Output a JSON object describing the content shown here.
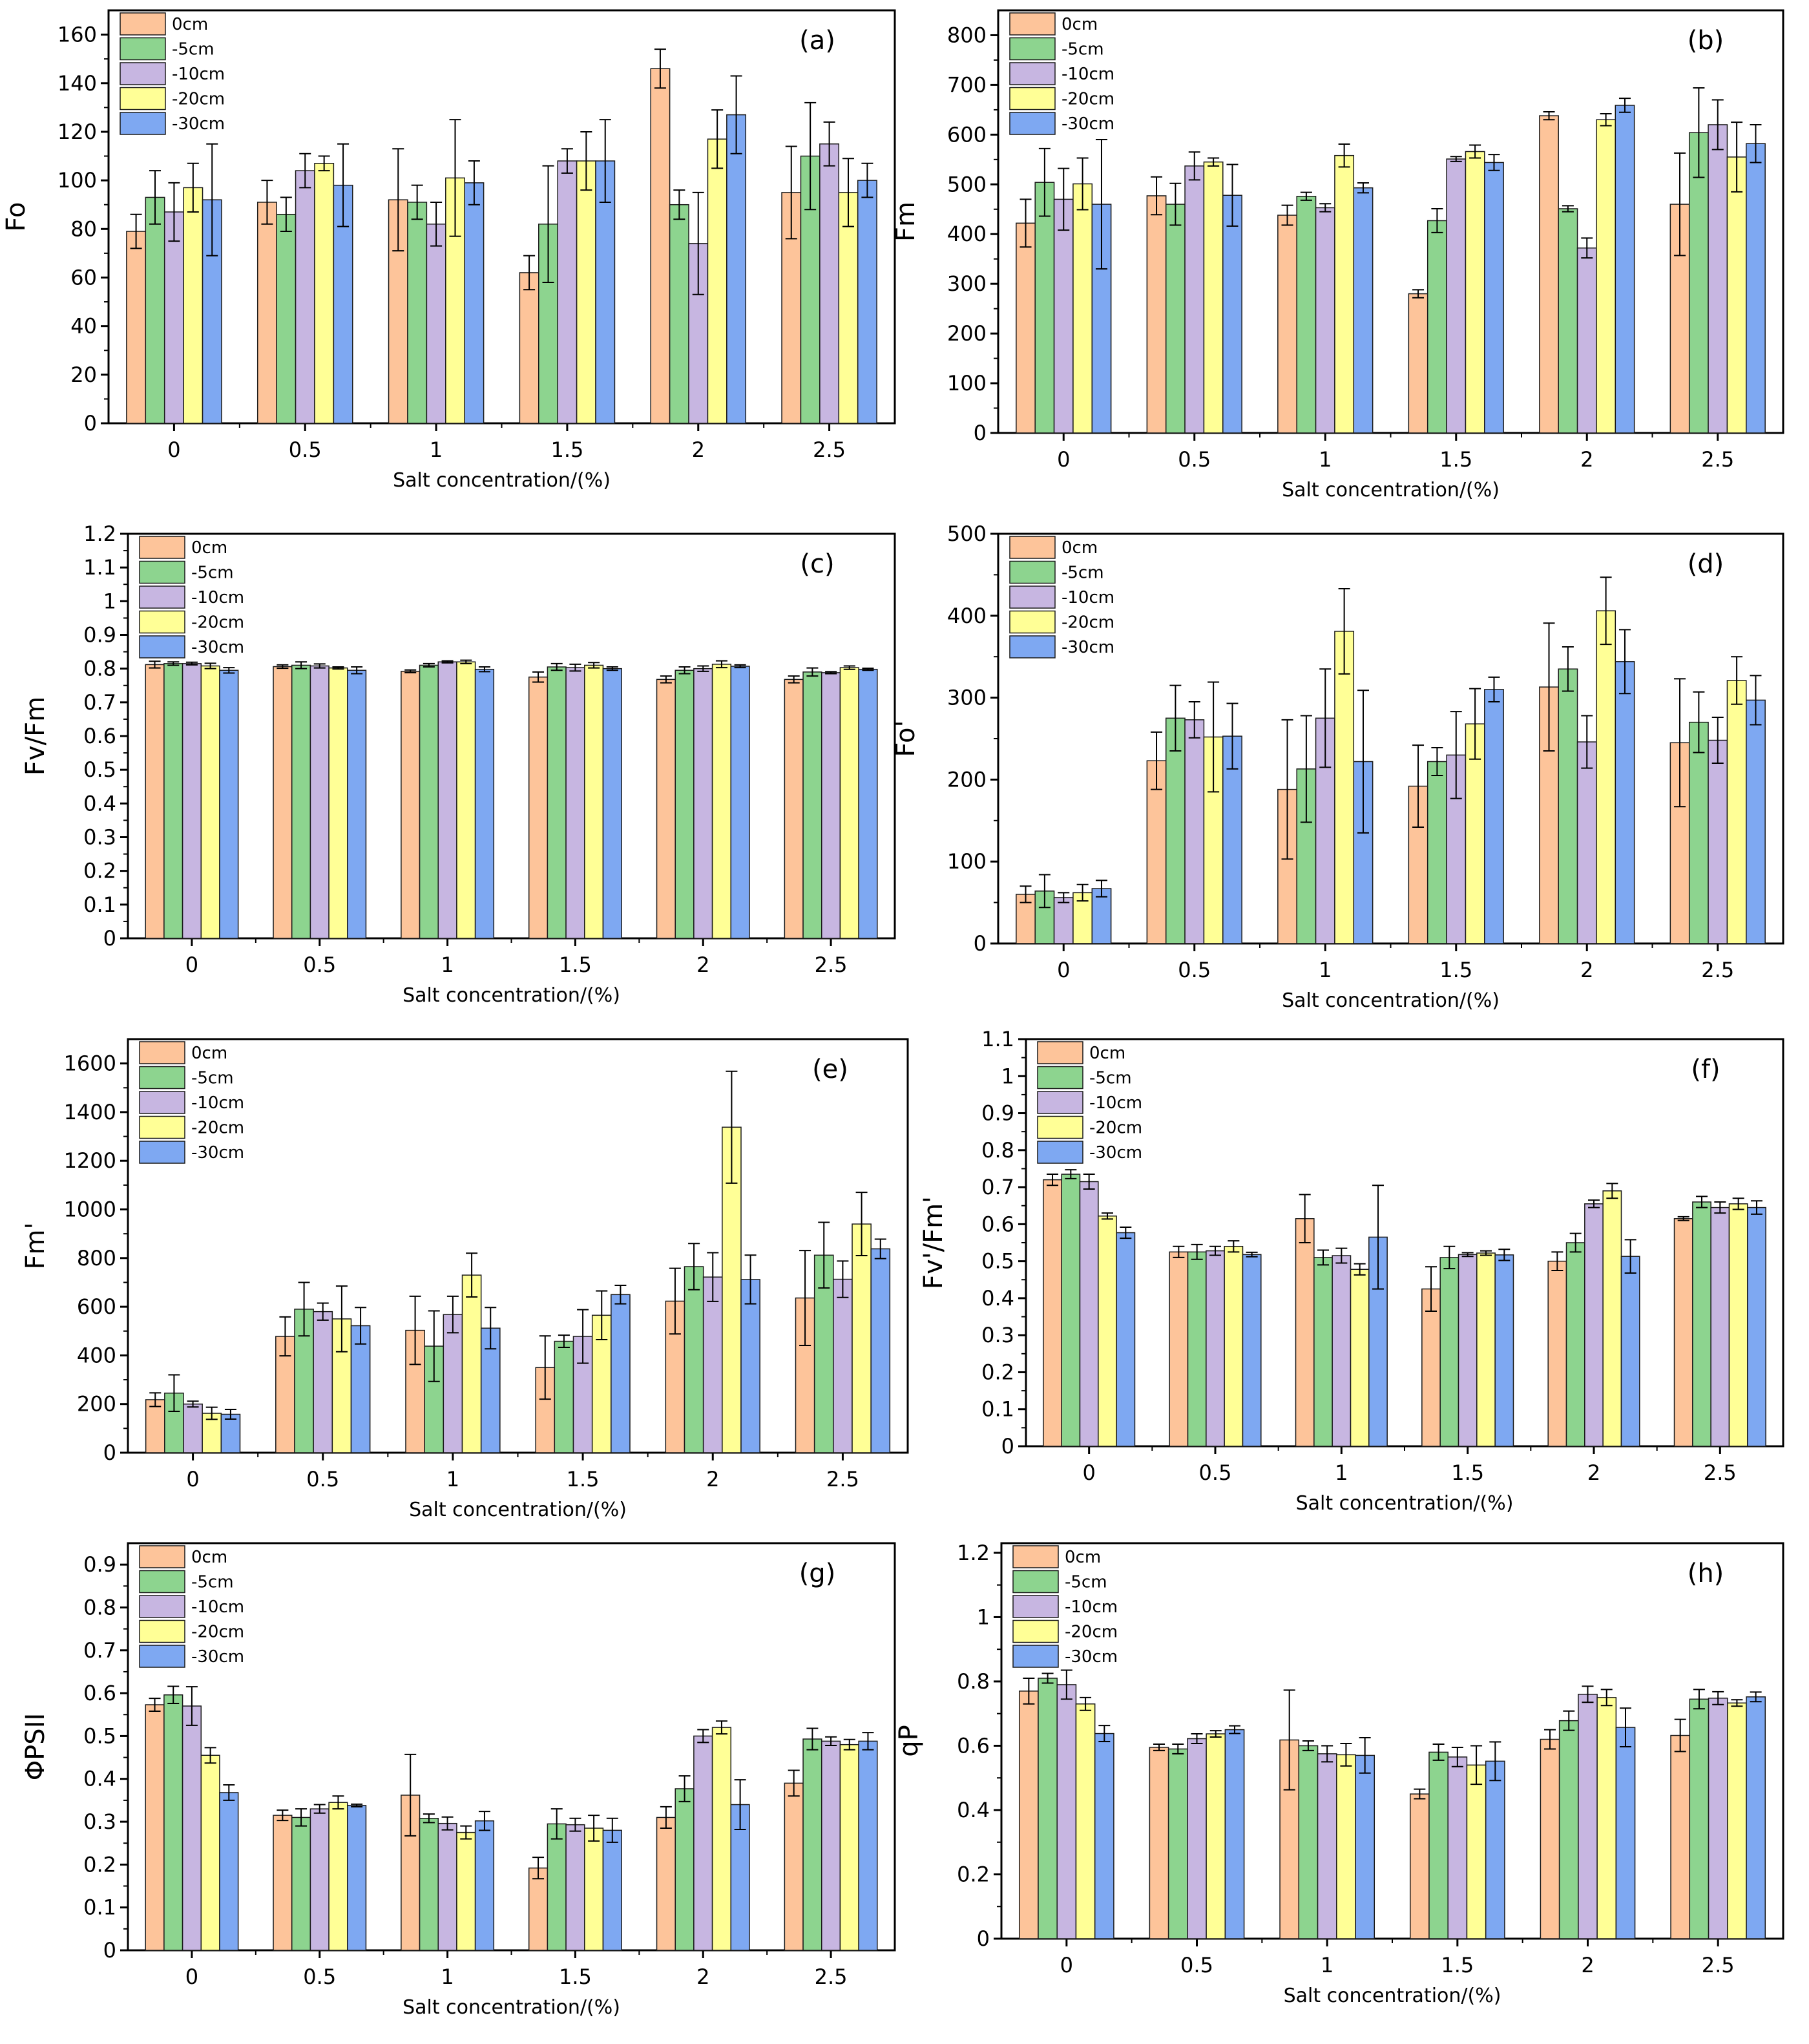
{
  "colors": {
    "0cm": "#FDC49A",
    "-5cm": "#8DD48F",
    "-10cm": "#C7B6E1",
    "-20cm": "#FFFF96",
    "-30cm": "#7EA8F2"
  },
  "chart_data": [
    {
      "type": "bar",
      "panel_label": "(a)",
      "ylabel": "Fo",
      "xlabel": "Salt concentration/(%)",
      "categories": [
        "0",
        "0.5",
        "1",
        "1.5",
        "2",
        "2.5"
      ],
      "ylim": [
        0,
        170
      ],
      "yticks": [
        0,
        20,
        40,
        60,
        80,
        100,
        120,
        140,
        160
      ],
      "ytick_labels": [
        "0",
        "20",
        "40",
        "60",
        "80",
        "100",
        "120",
        "140",
        "160"
      ],
      "legend": [
        "0cm",
        "-5cm",
        "-10cm",
        "-20cm",
        "-30cm"
      ],
      "series": [
        {
          "name": "0cm",
          "values": [
            79,
            91,
            92,
            62,
            146,
            95
          ],
          "errors": [
            7,
            9,
            21,
            7,
            8,
            19
          ]
        },
        {
          "name": "-5cm",
          "values": [
            93,
            86,
            91,
            82,
            90,
            110
          ],
          "errors": [
            11,
            7,
            7,
            24,
            6,
            22
          ]
        },
        {
          "name": "-10cm",
          "values": [
            87,
            104,
            82,
            108,
            74,
            115
          ],
          "errors": [
            12,
            7,
            9,
            5,
            21,
            9
          ]
        },
        {
          "name": "-20cm",
          "values": [
            97,
            107,
            101,
            108,
            117,
            95
          ],
          "errors": [
            10,
            3,
            24,
            12,
            12,
            14
          ]
        },
        {
          "name": "-30cm",
          "values": [
            92,
            98,
            99,
            108,
            127,
            100
          ],
          "errors": [
            23,
            17,
            9,
            17,
            16,
            7
          ]
        }
      ]
    },
    {
      "type": "bar",
      "panel_label": "(b)",
      "ylabel": "Fm",
      "xlabel": "Salt concentration/(%)",
      "categories": [
        "0",
        "0.5",
        "1",
        "1.5",
        "2",
        "2.5"
      ],
      "ylim": [
        0,
        850
      ],
      "yticks": [
        0,
        100,
        200,
        300,
        400,
        500,
        600,
        700,
        800
      ],
      "ytick_labels": [
        "0",
        "100",
        "200",
        "300",
        "400",
        "500",
        "600",
        "700",
        "800"
      ],
      "legend": [
        "0cm",
        "-5cm",
        "-10cm",
        "-20cm",
        "-30cm"
      ],
      "series": [
        {
          "name": "0cm",
          "values": [
            422,
            477,
            438,
            280,
            638,
            460
          ],
          "errors": [
            48,
            38,
            20,
            8,
            8,
            103
          ]
        },
        {
          "name": "-5cm",
          "values": [
            504,
            460,
            476,
            427,
            451,
            604
          ],
          "errors": [
            68,
            42,
            8,
            24,
            6,
            90
          ]
        },
        {
          "name": "-10cm",
          "values": [
            470,
            537,
            453,
            551,
            372,
            620
          ],
          "errors": [
            62,
            28,
            8,
            5,
            20,
            50
          ]
        },
        {
          "name": "-20cm",
          "values": [
            501,
            545,
            558,
            566,
            630,
            555
          ],
          "errors": [
            52,
            8,
            23,
            13,
            12,
            70
          ]
        },
        {
          "name": "-30cm",
          "values": [
            460,
            478,
            493,
            544,
            659,
            582
          ],
          "errors": [
            130,
            62,
            10,
            16,
            14,
            38
          ]
        }
      ]
    },
    {
      "type": "bar",
      "panel_label": "(c)",
      "ylabel": "Fv/Fm",
      "xlabel": "Salt concentration/(%)",
      "categories": [
        "0",
        "0.5",
        "1",
        "1.5",
        "2",
        "2.5"
      ],
      "ylim": [
        0,
        1.2
      ],
      "yticks": [
        0,
        0.1,
        0.2,
        0.3,
        0.4,
        0.5,
        0.6,
        0.7,
        0.8,
        0.9,
        1.0,
        1.1,
        1.2
      ],
      "ytick_labels": [
        "0",
        "0.1",
        "0.2",
        "0.3",
        "0.4",
        "0.5",
        "0.6",
        "0.7",
        "0.8",
        "0.9",
        "1",
        "1.1",
        "1.2"
      ],
      "legend": [
        "0cm",
        "-5cm",
        "-10cm",
        "-20cm",
        "-30cm"
      ],
      "series": [
        {
          "name": "0cm",
          "values": [
            0.812,
            0.806,
            0.792,
            0.775,
            0.768,
            0.768
          ],
          "errors": [
            0.01,
            0.005,
            0.004,
            0.015,
            0.01,
            0.01
          ]
        },
        {
          "name": "-5cm",
          "values": [
            0.815,
            0.81,
            0.81,
            0.805,
            0.795,
            0.79
          ],
          "errors": [
            0.005,
            0.01,
            0.005,
            0.01,
            0.01,
            0.012
          ]
        },
        {
          "name": "-10cm",
          "values": [
            0.815,
            0.808,
            0.82,
            0.803,
            0.8,
            0.788
          ],
          "errors": [
            0.004,
            0.006,
            0.003,
            0.01,
            0.008,
            0.003
          ]
        },
        {
          "name": "-20cm",
          "values": [
            0.808,
            0.802,
            0.82,
            0.81,
            0.813,
            0.803
          ],
          "errors": [
            0.008,
            0.003,
            0.005,
            0.008,
            0.01,
            0.005
          ]
        },
        {
          "name": "-30cm",
          "values": [
            0.795,
            0.795,
            0.798,
            0.8,
            0.807,
            0.798
          ],
          "errors": [
            0.008,
            0.01,
            0.007,
            0.005,
            0.004,
            0.003
          ]
        }
      ]
    },
    {
      "type": "bar",
      "panel_label": "(d)",
      "ylabel": "Fo'",
      "xlabel": "Salt concentration/(%)",
      "categories": [
        "0",
        "0.5",
        "1",
        "1.5",
        "2",
        "2.5"
      ],
      "ylim": [
        0,
        500
      ],
      "yticks": [
        0,
        100,
        200,
        300,
        400,
        500
      ],
      "ytick_labels": [
        "0",
        "100",
        "200",
        "300",
        "400",
        "500"
      ],
      "legend": [
        "0cm",
        "-5cm",
        "-10cm",
        "-20cm",
        "-30cm"
      ],
      "series": [
        {
          "name": "0cm",
          "values": [
            60,
            223,
            188,
            192,
            313,
            245
          ],
          "errors": [
            10,
            35,
            85,
            50,
            78,
            78
          ]
        },
        {
          "name": "-5cm",
          "values": [
            64,
            275,
            213,
            222,
            335,
            270
          ],
          "errors": [
            20,
            40,
            65,
            17,
            27,
            37
          ]
        },
        {
          "name": "-10cm",
          "values": [
            56,
            273,
            275,
            230,
            246,
            248
          ],
          "errors": [
            6,
            22,
            60,
            53,
            32,
            28
          ]
        },
        {
          "name": "-20cm",
          "values": [
            62,
            252,
            381,
            268,
            406,
            321
          ],
          "errors": [
            10,
            67,
            52,
            43,
            41,
            29
          ]
        },
        {
          "name": "-30cm",
          "values": [
            67,
            253,
            222,
            310,
            344,
            297
          ],
          "errors": [
            10,
            40,
            87,
            15,
            39,
            30
          ]
        }
      ]
    },
    {
      "type": "bar",
      "panel_label": "(e)",
      "ylabel": "Fm'",
      "xlabel": "Salt concentration/(%)",
      "categories": [
        "0",
        "0.5",
        "1",
        "1.5",
        "2",
        "2.5"
      ],
      "ylim": [
        0,
        1700
      ],
      "yticks": [
        0,
        200,
        400,
        600,
        800,
        1000,
        1200,
        1400,
        1600
      ],
      "ytick_labels": [
        "0",
        "200",
        "400",
        "600",
        "800",
        "1000",
        "1200",
        "1400",
        "1600"
      ],
      "legend": [
        "0cm",
        "-5cm",
        "-10cm",
        "-20cm",
        "-30cm"
      ],
      "series": [
        {
          "name": "0cm",
          "values": [
            218,
            478,
            503,
            350,
            623,
            636
          ],
          "errors": [
            28,
            80,
            140,
            130,
            135,
            195
          ]
        },
        {
          "name": "-5cm",
          "values": [
            245,
            590,
            438,
            458,
            765,
            812
          ],
          "errors": [
            75,
            110,
            145,
            25,
            95,
            135
          ]
        },
        {
          "name": "-10cm",
          "values": [
            200,
            580,
            568,
            478,
            722,
            713
          ],
          "errors": [
            12,
            35,
            75,
            110,
            100,
            75
          ]
        },
        {
          "name": "-20cm",
          "values": [
            162,
            550,
            730,
            565,
            1338,
            940
          ],
          "errors": [
            25,
            135,
            90,
            100,
            230,
            130
          ]
        },
        {
          "name": "-30cm",
          "values": [
            158,
            522,
            512,
            650,
            712,
            838
          ],
          "errors": [
            20,
            75,
            85,
            38,
            100,
            40
          ]
        }
      ]
    },
    {
      "type": "bar",
      "panel_label": "(f)",
      "ylabel": "Fv'/Fm'",
      "xlabel": "Salt concentration/(%)",
      "categories": [
        "0",
        "0.5",
        "1",
        "1.5",
        "2",
        "2.5"
      ],
      "ylim": [
        0,
        1.1
      ],
      "yticks": [
        0,
        0.1,
        0.2,
        0.3,
        0.4,
        0.5,
        0.6,
        0.7,
        0.8,
        0.9,
        1.0,
        1.1
      ],
      "ytick_labels": [
        "0",
        "0.1",
        "0.2",
        "0.3",
        "0.4",
        "0.5",
        "0.6",
        "0.7",
        "0.8",
        "0.9",
        "1",
        "1.1"
      ],
      "legend": [
        "0cm",
        "-5cm",
        "-10cm",
        "-20cm",
        "-30cm"
      ],
      "series": [
        {
          "name": "0cm",
          "values": [
            0.72,
            0.525,
            0.615,
            0.425,
            0.5,
            0.615
          ],
          "errors": [
            0.015,
            0.015,
            0.065,
            0.06,
            0.025,
            0.005
          ]
        },
        {
          "name": "-5cm",
          "values": [
            0.735,
            0.525,
            0.51,
            0.51,
            0.55,
            0.66
          ],
          "errors": [
            0.012,
            0.02,
            0.02,
            0.03,
            0.025,
            0.015
          ]
        },
        {
          "name": "-10cm",
          "values": [
            0.715,
            0.528,
            0.515,
            0.518,
            0.655,
            0.645
          ],
          "errors": [
            0.02,
            0.012,
            0.02,
            0.005,
            0.01,
            0.015
          ]
        },
        {
          "name": "-20cm",
          "values": [
            0.622,
            0.54,
            0.478,
            0.522,
            0.69,
            0.655
          ],
          "errors": [
            0.008,
            0.015,
            0.015,
            0.006,
            0.02,
            0.015
          ]
        },
        {
          "name": "-30cm",
          "values": [
            0.577,
            0.518,
            0.565,
            0.517,
            0.513,
            0.645
          ],
          "errors": [
            0.015,
            0.006,
            0.14,
            0.015,
            0.045,
            0.018
          ]
        }
      ]
    },
    {
      "type": "bar",
      "panel_label": "(g)",
      "ylabel": "ΦPSII",
      "xlabel": "Salt concentration/(%)",
      "categories": [
        "0",
        "0.5",
        "1",
        "1.5",
        "2",
        "2.5"
      ],
      "ylim": [
        0,
        0.95
      ],
      "yticks": [
        0,
        0.1,
        0.2,
        0.3,
        0.4,
        0.5,
        0.6,
        0.7,
        0.8,
        0.9
      ],
      "ytick_labels": [
        "0",
        "0.1",
        "0.2",
        "0.3",
        "0.4",
        "0.5",
        "0.6",
        "0.7",
        "0.8",
        "0.9"
      ],
      "legend": [
        "0cm",
        "-5cm",
        "-10cm",
        "-20cm",
        "-30cm"
      ],
      "series": [
        {
          "name": "0cm",
          "values": [
            0.573,
            0.315,
            0.362,
            0.192,
            0.31,
            0.39
          ],
          "errors": [
            0.015,
            0.012,
            0.095,
            0.025,
            0.025,
            0.03
          ]
        },
        {
          "name": "-5cm",
          "values": [
            0.596,
            0.31,
            0.308,
            0.295,
            0.377,
            0.493
          ],
          "errors": [
            0.02,
            0.02,
            0.01,
            0.035,
            0.03,
            0.025
          ]
        },
        {
          "name": "-10cm",
          "values": [
            0.57,
            0.33,
            0.296,
            0.293,
            0.5,
            0.488
          ],
          "errors": [
            0.045,
            0.01,
            0.015,
            0.015,
            0.015,
            0.01
          ]
        },
        {
          "name": "-20cm",
          "values": [
            0.455,
            0.345,
            0.275,
            0.285,
            0.52,
            0.48
          ],
          "errors": [
            0.018,
            0.015,
            0.015,
            0.03,
            0.015,
            0.012
          ]
        },
        {
          "name": "-30cm",
          "values": [
            0.368,
            0.338,
            0.302,
            0.28,
            0.34,
            0.488
          ],
          "errors": [
            0.018,
            0.003,
            0.022,
            0.028,
            0.058,
            0.02
          ]
        }
      ]
    },
    {
      "type": "bar",
      "panel_label": "(h)",
      "ylabel": "qP",
      "xlabel": "Salt concentration/(%)",
      "categories": [
        "0",
        "0.5",
        "1",
        "1.5",
        "2",
        "2.5"
      ],
      "ylim": [
        0,
        1.23
      ],
      "yticks": [
        0,
        0.2,
        0.4,
        0.6,
        0.8,
        1.0,
        1.2
      ],
      "ytick_labels": [
        "0",
        "0.2",
        "0.4",
        "0.6",
        "0.8",
        "1",
        "1.2"
      ],
      "legend": [
        "0cm",
        "-5cm",
        "-10cm",
        "-20cm",
        "-30cm"
      ],
      "series": [
        {
          "name": "0cm",
          "values": [
            0.77,
            0.595,
            0.618,
            0.45,
            0.62,
            0.632
          ],
          "errors": [
            0.04,
            0.01,
            0.155,
            0.015,
            0.03,
            0.05
          ]
        },
        {
          "name": "-5cm",
          "values": [
            0.81,
            0.59,
            0.6,
            0.58,
            0.678,
            0.745
          ],
          "errors": [
            0.015,
            0.015,
            0.015,
            0.025,
            0.03,
            0.03
          ]
        },
        {
          "name": "-10cm",
          "values": [
            0.79,
            0.622,
            0.575,
            0.565,
            0.76,
            0.748
          ],
          "errors": [
            0.045,
            0.015,
            0.025,
            0.03,
            0.025,
            0.02
          ]
        },
        {
          "name": "-20cm",
          "values": [
            0.73,
            0.637,
            0.572,
            0.54,
            0.75,
            0.733
          ],
          "errors": [
            0.02,
            0.01,
            0.035,
            0.06,
            0.025,
            0.01
          ]
        },
        {
          "name": "-30cm",
          "values": [
            0.638,
            0.65,
            0.57,
            0.552,
            0.657,
            0.752
          ],
          "errors": [
            0.025,
            0.012,
            0.055,
            0.06,
            0.06,
            0.015
          ]
        }
      ]
    }
  ]
}
